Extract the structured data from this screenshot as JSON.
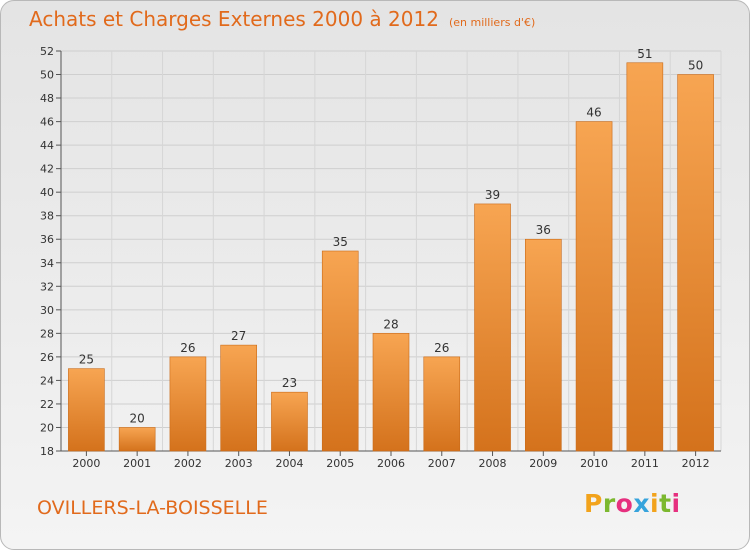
{
  "header": {
    "title": "Achats et Charges Externes 2000 à 2012",
    "subtitle": "(en milliers d'€)"
  },
  "footer": {
    "commune": "OVILLERS-LA-BOISSELLE",
    "logo_letters": [
      "P",
      "r",
      "o",
      "x",
      "i",
      "t",
      "i"
    ],
    "logo_colors": [
      "#f2a31c",
      "#7cb82f",
      "#e6307f",
      "#36a3dc",
      "#f2a31c",
      "#7cb82f",
      "#e6307f"
    ]
  },
  "chart_data": {
    "type": "bar",
    "categories": [
      "2000",
      "2001",
      "2002",
      "2003",
      "2004",
      "2005",
      "2006",
      "2007",
      "2008",
      "2009",
      "2010",
      "2011",
      "2012"
    ],
    "values": [
      25,
      20,
      26,
      27,
      23,
      35,
      28,
      26,
      39,
      36,
      46,
      51,
      50
    ],
    "value_labels": [
      "25",
      "20",
      "26",
      "27",
      "23",
      "35",
      "28",
      "26",
      "39",
      "36",
      "46",
      "51",
      "50"
    ],
    "ylim": [
      18,
      52
    ],
    "yticks": [
      "18",
      "20",
      "22",
      "24",
      "26",
      "28",
      "30",
      "32",
      "34",
      "36",
      "38",
      "40",
      "42",
      "44",
      "46",
      "48",
      "50",
      "52"
    ],
    "grid": true,
    "bar_color_top": "#f7a552",
    "bar_color_bottom": "#d4721c",
    "xlabel": "",
    "ylabel": ""
  }
}
